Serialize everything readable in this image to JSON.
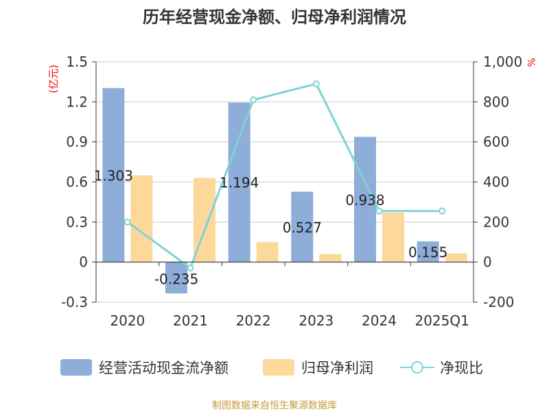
{
  "chart_data": {
    "type": "bar",
    "title": "历年经营现金净额、归母净利润情况",
    "left_unit": "(亿元)",
    "right_unit": "%",
    "categories": [
      "2020",
      "2021",
      "2022",
      "2023",
      "2024",
      "2025Q1"
    ],
    "series": [
      {
        "name": "经营活动现金流净额",
        "type": "bar",
        "axis": "left",
        "color": "#8eadd9",
        "values": [
          1.303,
          -0.235,
          1.194,
          0.527,
          0.938,
          0.155
        ],
        "labels": [
          "1.303",
          "-0.235",
          "1.194",
          "0.527",
          "0.938",
          "0.155"
        ]
      },
      {
        "name": "归母净利润",
        "type": "bar",
        "axis": "left",
        "color": "#fdd89b",
        "values": [
          0.65,
          0.63,
          0.15,
          0.06,
          0.37,
          0.065
        ]
      },
      {
        "name": "净现比",
        "type": "line",
        "axis": "right",
        "color": "#7fd3d3",
        "values": [
          200,
          -30,
          810,
          890,
          255,
          255
        ]
      }
    ],
    "left_axis": {
      "min": -0.3,
      "max": 1.5,
      "ticks": [
        "-0.3",
        "0",
        "0.3",
        "0.6",
        "0.9",
        "1.2",
        "1.5"
      ],
      "tick_values": [
        -0.3,
        0,
        0.3,
        0.6,
        0.9,
        1.2,
        1.5
      ]
    },
    "right_axis": {
      "min": -200,
      "max": 1000,
      "ticks": [
        "-200",
        "0",
        "200",
        "400",
        "600",
        "800",
        "1,000"
      ],
      "tick_values": [
        -200,
        0,
        200,
        400,
        600,
        800,
        1000
      ]
    },
    "grid": true,
    "legend_position": "bottom"
  },
  "source": "制图数据来自恒生聚源数据库",
  "colors": {
    "axis": "#333333",
    "grid": "#cccccc",
    "unit": "#ff0000",
    "source": "#c49a3a",
    "title": "#333333"
  }
}
